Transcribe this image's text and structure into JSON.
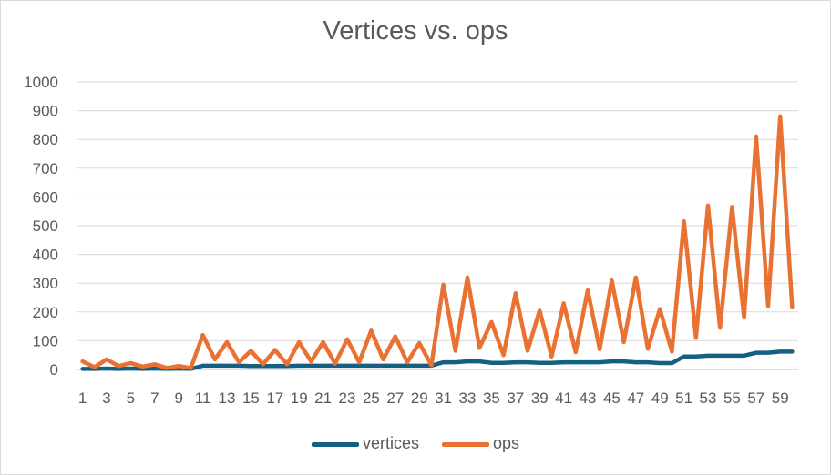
{
  "chart_data": {
    "type": "line",
    "title": "Vertices vs. ops",
    "xlabel": "",
    "ylabel": "",
    "ylim": [
      0,
      1000
    ],
    "y_ticks": [
      0,
      100,
      200,
      300,
      400,
      500,
      600,
      700,
      800,
      900,
      1000
    ],
    "x": [
      1,
      2,
      3,
      4,
      5,
      6,
      7,
      8,
      9,
      10,
      11,
      12,
      13,
      14,
      15,
      16,
      17,
      18,
      19,
      20,
      21,
      22,
      23,
      24,
      25,
      26,
      27,
      28,
      29,
      30,
      31,
      32,
      33,
      34,
      35,
      36,
      37,
      38,
      39,
      40,
      41,
      42,
      43,
      44,
      45,
      46,
      47,
      48,
      49,
      50,
      51,
      52,
      53,
      54,
      55,
      56,
      57,
      58,
      59,
      60
    ],
    "x_tick_labels": [
      "1",
      "3",
      "5",
      "7",
      "9",
      "11",
      "13",
      "15",
      "17",
      "19",
      "21",
      "23",
      "25",
      "27",
      "29",
      "31",
      "33",
      "35",
      "37",
      "39",
      "41",
      "43",
      "45",
      "47",
      "49",
      "51",
      "53",
      "55",
      "57",
      "59"
    ],
    "grid": true,
    "legend_position": "bottom",
    "series": [
      {
        "name": "vertices",
        "color": "#156082",
        "values": [
          2,
          2,
          3,
          2,
          3,
          2,
          3,
          2,
          3,
          2,
          13,
          13,
          13,
          13,
          12,
          12,
          12,
          12,
          13,
          13,
          13,
          13,
          13,
          13,
          13,
          13,
          13,
          13,
          13,
          13,
          25,
          25,
          28,
          28,
          23,
          23,
          25,
          25,
          23,
          23,
          25,
          25,
          25,
          25,
          28,
          28,
          25,
          25,
          22,
          22,
          45,
          45,
          48,
          48,
          48,
          48,
          58,
          58,
          62,
          62
        ]
      },
      {
        "name": "ops",
        "color": "#e97132",
        "values": [
          28,
          8,
          35,
          12,
          22,
          10,
          18,
          5,
          12,
          5,
          120,
          35,
          95,
          25,
          65,
          18,
          68,
          18,
          95,
          28,
          95,
          20,
          105,
          25,
          135,
          35,
          115,
          25,
          92,
          15,
          295,
          65,
          320,
          75,
          165,
          50,
          265,
          65,
          205,
          45,
          230,
          60,
          275,
          70,
          310,
          95,
          320,
          72,
          210,
          62,
          515,
          110,
          570,
          145,
          565,
          180,
          810,
          220,
          880,
          215
        ]
      }
    ]
  }
}
